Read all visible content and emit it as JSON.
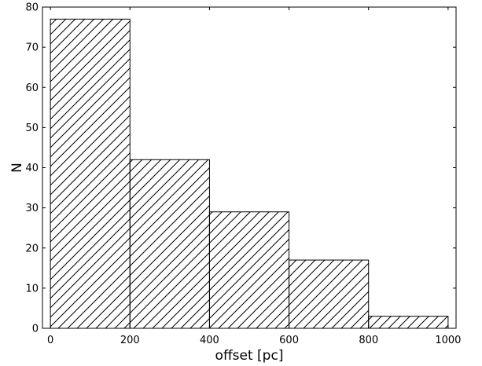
{
  "chart_data": {
    "type": "bar",
    "style": "histogram",
    "hatch": "diagonal",
    "bins": [
      {
        "x0": 0,
        "x1": 200,
        "count": 77
      },
      {
        "x0": 200,
        "x1": 400,
        "count": 42
      },
      {
        "x0": 400,
        "x1": 600,
        "count": 29
      },
      {
        "x0": 600,
        "x1": 800,
        "count": 17
      },
      {
        "x0": 800,
        "x1": 1000,
        "count": 3
      }
    ],
    "title": "",
    "xlabel": "offset [pc]",
    "ylabel": "N",
    "xlim": [
      -20,
      1020
    ],
    "ylim": [
      0,
      80
    ],
    "xticks": [
      0,
      200,
      400,
      600,
      800,
      1000
    ],
    "yticks": [
      0,
      10,
      20,
      30,
      40,
      50,
      60,
      70,
      80
    ],
    "grid": false,
    "colors": {
      "edge": "#000000",
      "face": "#ffffff",
      "hatch": "#000000"
    }
  }
}
